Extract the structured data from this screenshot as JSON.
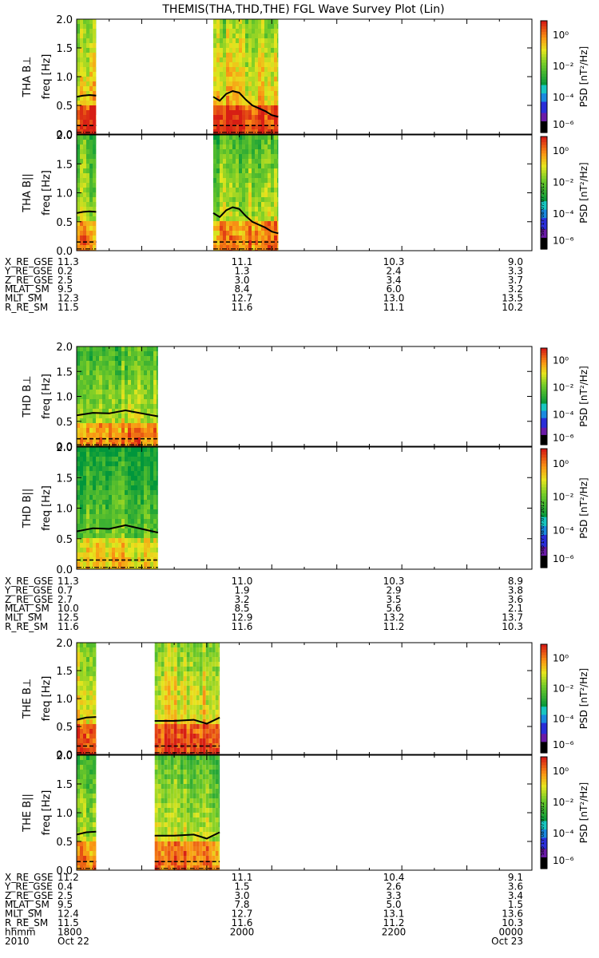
{
  "title": "THEMIS(THA,THD,THE) FGL Wave Survey Plot (Lin)",
  "colorbar": {
    "label": "PSD [nT²/Hz]",
    "ticks": [
      "10⁰",
      "10⁻²",
      "10⁻⁴",
      "10⁻⁶"
    ],
    "timestamp": "Mon Sep 17 08:07:07 2012"
  },
  "y_axis": {
    "label": "freq [Hz]",
    "ticks": [
      "0.0",
      "0.5",
      "1.0",
      "1.5",
      "2.0"
    ],
    "range": [
      0,
      2
    ]
  },
  "x_axis": {
    "range_hours": [
      17,
      24
    ],
    "ticks": [
      "1800",
      "2000",
      "2200",
      "0000"
    ]
  },
  "panels": [
    {
      "probe": "THA",
      "label": "THA B⊥"
    },
    {
      "probe": "THA",
      "label": "THA B||"
    },
    {
      "probe": "THD",
      "label": "THD B⊥"
    },
    {
      "probe": "THD",
      "label": "THD B||"
    },
    {
      "probe": "THE",
      "label": "THE B⊥"
    },
    {
      "probe": "THE",
      "label": "THE B||"
    }
  ],
  "ephemeris": [
    {
      "rows": [
        {
          "name": "X_RE_GSE",
          "values": [
            "11.3",
            "11.1",
            "10.3",
            "9.0"
          ]
        },
        {
          "name": "Y_RE_GSE",
          "values": [
            "0.2",
            "1.3",
            "2.4",
            "3.3"
          ]
        },
        {
          "name": "Z_RE_GSE",
          "values": [
            "2.5",
            "3.0",
            "3.4",
            "3.7"
          ]
        },
        {
          "name": "MLAT_SM",
          "values": [
            "9.5",
            "8.4",
            "6.0",
            "3.2"
          ]
        },
        {
          "name": "MLT_SM",
          "values": [
            "12.3",
            "12.7",
            "13.0",
            "13.5"
          ]
        },
        {
          "name": "R_RE_SM",
          "values": [
            "11.5",
            "11.6",
            "11.1",
            "10.2"
          ]
        }
      ]
    },
    {
      "rows": [
        {
          "name": "X_RE_GSE",
          "values": [
            "11.3",
            "11.0",
            "10.3",
            "8.9"
          ]
        },
        {
          "name": "Y_RE_GSE",
          "values": [
            "0.7",
            "1.9",
            "2.9",
            "3.8"
          ]
        },
        {
          "name": "Z_RE_GSE",
          "values": [
            "2.7",
            "3.2",
            "3.5",
            "3.6"
          ]
        },
        {
          "name": "MLAT_SM",
          "values": [
            "10.0",
            "8.5",
            "5.6",
            "2.1"
          ]
        },
        {
          "name": "MLT_SM",
          "values": [
            "12.5",
            "12.9",
            "13.2",
            "13.7"
          ]
        },
        {
          "name": "R_RE_SM",
          "values": [
            "11.6",
            "11.6",
            "11.2",
            "10.3"
          ]
        }
      ]
    },
    {
      "rows": [
        {
          "name": "X_RE_GSE",
          "values": [
            "11.2",
            "11.1",
            "10.4",
            "9.1"
          ]
        },
        {
          "name": "Y_RE_GSE",
          "values": [
            "0.4",
            "1.5",
            "2.6",
            "3.6"
          ]
        },
        {
          "name": "Z_RE_GSE",
          "values": [
            "2.5",
            "3.0",
            "3.3",
            "3.4"
          ]
        },
        {
          "name": "MLAT_SM",
          "values": [
            "9.5",
            "7.8",
            "5.0",
            "1.5"
          ]
        },
        {
          "name": "MLT_SM",
          "values": [
            "12.4",
            "12.7",
            "13.1",
            "13.6"
          ]
        },
        {
          "name": "R_RE_SM",
          "values": [
            "11.5",
            "11.6",
            "11.2",
            "10.3"
          ]
        },
        {
          "name": "hhmm",
          "values": [
            "1800",
            "2000",
            "2200",
            "0000"
          ]
        }
      ],
      "date_row": {
        "name": "2010",
        "values": [
          "Oct 22",
          "",
          "",
          "Oct 23"
        ]
      }
    }
  ],
  "chart_data": {
    "type": "heatmap",
    "title": "THEMIS(THA,THD,THE) FGL Wave Survey Plot (Lin)",
    "ylabel": "freq [Hz]",
    "ylim": [
      0,
      2
    ],
    "x_ticks": [
      "1800",
      "2000",
      "2200",
      "0000"
    ],
    "color_scale_ticks": [
      "10⁰",
      "10⁻²",
      "10⁻⁴",
      "10⁻⁶"
    ],
    "data_intervals_hours": {
      "THA": [
        [
          17.0,
          17.3
        ],
        [
          19.1,
          20.1
        ]
      ],
      "THD": [
        [
          17.0,
          18.25
        ]
      ],
      "THE": [
        [
          17.0,
          17.3
        ],
        [
          18.2,
          19.2
        ]
      ]
    },
    "series_THA_upper_freq": {
      "x": [
        17.0,
        17.1,
        17.2,
        17.3,
        19.1,
        19.2,
        19.3,
        19.4,
        19.5,
        19.6,
        19.7,
        19.8,
        19.9,
        20.0,
        20.1
      ],
      "y": [
        0.65,
        0.67,
        0.68,
        0.67,
        0.65,
        0.58,
        0.7,
        0.75,
        0.72,
        0.6,
        0.5,
        0.45,
        0.4,
        0.33,
        0.3
      ]
    },
    "series_THD_upper_freq": {
      "x": [
        17.0,
        17.25,
        17.5,
        17.75,
        18.0,
        18.25
      ],
      "y": [
        0.62,
        0.67,
        0.66,
        0.72,
        0.66,
        0.6
      ]
    },
    "series_THE_upper_freq": {
      "x": [
        17.0,
        17.15,
        17.3,
        18.2,
        18.5,
        18.8,
        19.0,
        19.2
      ],
      "y": [
        0.62,
        0.66,
        0.67,
        0.6,
        0.6,
        0.62,
        0.55,
        0.66
      ]
    }
  }
}
